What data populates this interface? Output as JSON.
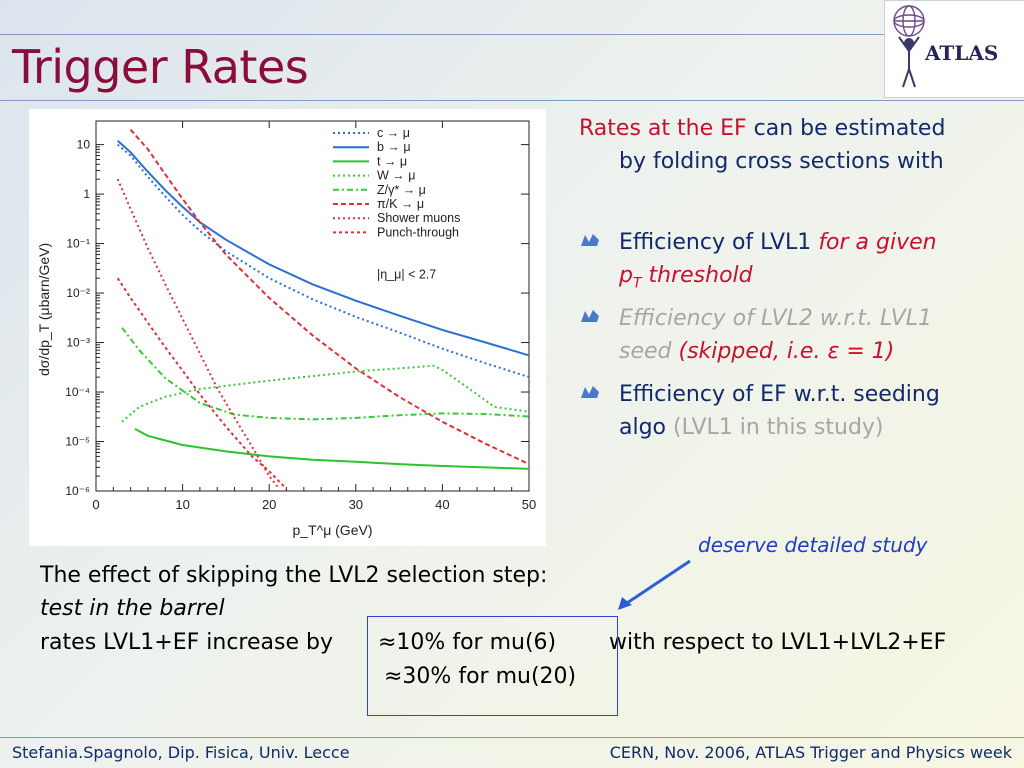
{
  "slide": {
    "title": "Trigger Rates",
    "logo_text": "ATLAS",
    "intro_red": "Rates at the EF",
    "intro_navy_1": " can be estimated",
    "intro_navy_2": "by folding cross sections with",
    "bullets": [
      {
        "navy": "Efficiency of LVL1 ",
        "red_italic": "for a given",
        "line2_a": "p",
        "line2_sub": "T",
        "line2_b": " threshold"
      },
      {
        "grey_italic_1": "Efficiency of LVL2 w.r.t. LVL1",
        "grey_italic_2": "seed ",
        "red_italic": "(skipped, i.e. ε = 1)"
      },
      {
        "navy_1": "Efficiency of EF w.r.t. seeding",
        "navy_2": "algo ",
        "grey": "(LVL1 in this study)"
      }
    ],
    "annotation": "deserve detailed study",
    "body_line1": "The effect of skipping the LVL2 selection step:",
    "body_line2": "test in the barrel",
    "body_line3_a": "rates LVL1+EF increase by ",
    "body_line3_b": "≈10% for mu(6)",
    "body_line3_c": "with respect to LVL1+LVL2+EF",
    "body_line4": "≈30% for mu(20)",
    "footer_left": "Stefania.Spagnolo, Dip. Fisica, Univ. Lecce",
    "footer_right": "CERN, Nov. 2006, ATLAS Trigger and Physics week"
  },
  "colors": {
    "title": "#8b0d3a",
    "navy": "#102a6b",
    "red": "#c8102e",
    "grey": "#a6a6a6",
    "annotation": "#1f3fbf",
    "box": "#2e44cc"
  },
  "chart_data": {
    "type": "line",
    "xlabel": "p_T^μ (GeV)",
    "ylabel": "dσ/dp_T (μbarn/GeV)",
    "xlim": [
      0,
      50
    ],
    "ylim": [
      1e-06,
      30
    ],
    "yscale": "log",
    "x_ticks": [
      "0",
      "10",
      "20",
      "30",
      "40",
      "50"
    ],
    "y_ticks": [
      "10",
      "1",
      "10⁻¹",
      "10⁻²",
      "10⁻³",
      "10⁻⁴",
      "10⁻⁵",
      "10⁻⁶"
    ],
    "annotation": "|η_μ| < 2.7",
    "legend_position": "top-right",
    "series": [
      {
        "name": "c → μ",
        "color": "#2a6fd6",
        "dash": "dot",
        "points": [
          [
            2.5,
            10
          ],
          [
            4,
            6
          ],
          [
            6,
            2.2
          ],
          [
            8,
            0.9
          ],
          [
            10,
            0.38
          ],
          [
            12,
            0.18
          ],
          [
            15,
            0.07
          ],
          [
            20,
            0.02
          ],
          [
            25,
            0.0075
          ],
          [
            30,
            0.0033
          ],
          [
            35,
            0.0016
          ],
          [
            40,
            0.00075
          ],
          [
            45,
            0.00038
          ],
          [
            50,
            0.0002
          ]
        ]
      },
      {
        "name": "b → μ",
        "color": "#2a6fd6",
        "dash": "solid",
        "points": [
          [
            2.5,
            12
          ],
          [
            4,
            7
          ],
          [
            6,
            2.8
          ],
          [
            8,
            1.2
          ],
          [
            10,
            0.55
          ],
          [
            12,
            0.27
          ],
          [
            15,
            0.12
          ],
          [
            20,
            0.038
          ],
          [
            25,
            0.015
          ],
          [
            30,
            0.007
          ],
          [
            35,
            0.0035
          ],
          [
            40,
            0.0018
          ],
          [
            45,
            0.001
          ],
          [
            50,
            0.00055
          ]
        ]
      },
      {
        "name": "t → μ",
        "color": "#2ec22e",
        "dash": "solid",
        "points": [
          [
            4.5,
            1.8e-05
          ],
          [
            6,
            1.3e-05
          ],
          [
            10,
            8.5e-06
          ],
          [
            15,
            6.3e-06
          ],
          [
            20,
            5e-06
          ],
          [
            25,
            4.3e-06
          ],
          [
            30,
            3.9e-06
          ],
          [
            35,
            3.5e-06
          ],
          [
            40,
            3.2e-06
          ],
          [
            45,
            3e-06
          ],
          [
            50,
            2.8e-06
          ]
        ]
      },
      {
        "name": "W → μ",
        "color": "#38c838",
        "dash": "dot",
        "points": [
          [
            3,
            2.5e-05
          ],
          [
            5,
            5e-05
          ],
          [
            8,
            8e-05
          ],
          [
            12,
            0.000115
          ],
          [
            16,
            0.00014
          ],
          [
            20,
            0.00017
          ],
          [
            25,
            0.00021
          ],
          [
            30,
            0.00026
          ],
          [
            35,
            0.0003
          ],
          [
            39,
            0.00034
          ],
          [
            40,
            0.00028
          ],
          [
            43,
            0.00012
          ],
          [
            46,
            5e-05
          ],
          [
            50,
            4e-05
          ]
        ]
      },
      {
        "name": "Z/γ* → μ",
        "color": "#38c838",
        "dash": "dashdot",
        "points": [
          [
            3,
            0.002
          ],
          [
            5,
            0.0007
          ],
          [
            8,
            0.00019
          ],
          [
            12,
            6e-05
          ],
          [
            16,
            3.5e-05
          ],
          [
            20,
            3e-05
          ],
          [
            25,
            2.8e-05
          ],
          [
            30,
            3e-05
          ],
          [
            35,
            3.4e-05
          ],
          [
            40,
            3.7e-05
          ],
          [
            45,
            3.6e-05
          ],
          [
            50,
            3.2e-05
          ]
        ]
      },
      {
        "name": "π/K → μ",
        "color": "#e0303a",
        "dash": "dash",
        "points": [
          [
            4,
            20
          ],
          [
            6,
            8
          ],
          [
            8,
            2.5
          ],
          [
            10,
            0.8
          ],
          [
            12,
            0.27
          ],
          [
            15,
            0.06
          ],
          [
            20,
            0.008
          ],
          [
            25,
            0.0014
          ],
          [
            30,
            0.0003
          ],
          [
            35,
            8e-05
          ],
          [
            40,
            2.5e-05
          ],
          [
            45,
            9e-06
          ],
          [
            50,
            3.5e-06
          ]
        ]
      },
      {
        "name": "Shower muons",
        "color": "#d9333b",
        "dash": "dot",
        "points": [
          [
            2.5,
            2
          ],
          [
            4,
            0.5
          ],
          [
            6,
            0.08
          ],
          [
            8,
            0.015
          ],
          [
            10,
            0.003
          ],
          [
            12,
            0.0006
          ],
          [
            14,
            0.00012
          ],
          [
            16,
            3e-05
          ],
          [
            18,
            8e-06
          ],
          [
            20,
            2e-06
          ],
          [
            21,
            1.2e-06
          ]
        ]
      },
      {
        "name": "Punch-through",
        "color": "#e0303a",
        "dash": "shortdash",
        "points": [
          [
            2.5,
            0.02
          ],
          [
            4,
            0.008
          ],
          [
            6,
            0.0025
          ],
          [
            8,
            0.0008
          ],
          [
            10,
            0.00027
          ],
          [
            12,
            9e-05
          ],
          [
            15,
            2e-05
          ],
          [
            18,
            5e-06
          ],
          [
            20,
            2.5e-06
          ],
          [
            22,
            1.1e-06
          ]
        ]
      }
    ]
  }
}
